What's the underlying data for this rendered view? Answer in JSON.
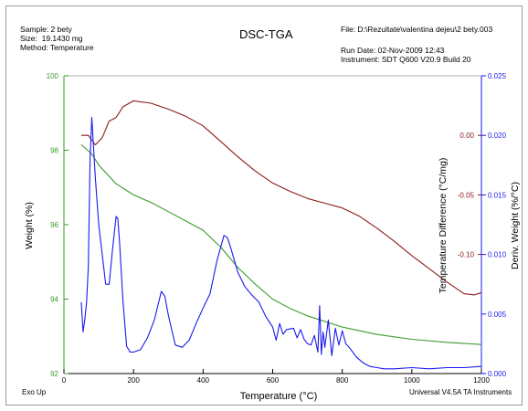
{
  "header": {
    "sample": "Sample: 2 bety",
    "size": "Size:  19.1430 mg",
    "method": "Method: Temperature",
    "file": "File: D:\\Rezultate\\valentina dejeu\\2 bety.003",
    "run_date": "Run Date: 02-Nov-2009 12:43",
    "instrument": "Instrument: SDT Q600 V20.9 Build 20"
  },
  "footer": {
    "exo": "Exo Up",
    "software": "Universal V4.5A TA Instruments"
  },
  "colors": {
    "weight": "#3a9a2a",
    "heat_flow": "#8b1a1a",
    "deriv": "#1a1aee",
    "axis": "#000000",
    "deriv_axis": "#1a1aee"
  },
  "chart_data": {
    "type": "line",
    "title": "DSC-TGA",
    "xlabel": "Temperature (°C)",
    "xlim": [
      0,
      1200
    ],
    "x_ticks": [
      0,
      200,
      400,
      600,
      800,
      1000,
      1200
    ],
    "grid": false,
    "axes": {
      "left": {
        "label": "Weight (%)",
        "ylim": [
          92,
          100
        ],
        "ticks": [
          92,
          94,
          96,
          98,
          100
        ],
        "labels": [
          "92",
          "94",
          "96",
          "98",
          "100"
        ]
      },
      "right_inner": {
        "label": "Temperature Difference (°C/mg)",
        "ylim": [
          -0.2,
          0.05
        ],
        "ticks": [
          -0.1,
          -0.05,
          0.0
        ],
        "labels": [
          "-0.10",
          "-0.05",
          "0.00"
        ]
      },
      "right_outer": {
        "label": "Deriv. Weight (%/°C)",
        "ylim": [
          0,
          0.025
        ],
        "ticks": [
          0,
          0.005,
          0.01,
          0.015,
          0.02,
          0.025
        ],
        "labels": [
          "0.000",
          "0.005",
          "0.010",
          "0.015",
          "0.020",
          "0.025"
        ]
      }
    },
    "series": [
      {
        "name": "Weight",
        "axis": "left",
        "color": "#3a9a2a",
        "x": [
          50,
          80,
          100,
          150,
          200,
          250,
          300,
          350,
          400,
          450,
          500,
          550,
          600,
          650,
          700,
          800,
          900,
          1000,
          1100,
          1200
        ],
        "y": [
          98.15,
          97.9,
          97.6,
          97.1,
          96.8,
          96.6,
          96.35,
          96.1,
          95.85,
          95.4,
          94.85,
          94.4,
          94.0,
          93.75,
          93.55,
          93.25,
          93.05,
          92.92,
          92.84,
          92.78
        ]
      },
      {
        "name": "Heat Flow",
        "axis": "right_inner",
        "color": "#8b1a1a",
        "x": [
          50,
          70,
          90,
          110,
          130,
          150,
          170,
          200,
          250,
          300,
          350,
          400,
          450,
          500,
          550,
          600,
          650,
          700,
          750,
          800,
          850,
          900,
          950,
          1000,
          1050,
          1100,
          1150,
          1180,
          1200
        ],
        "y": [
          0.0,
          0.0,
          -0.008,
          -0.002,
          0.012,
          0.015,
          0.024,
          0.029,
          0.027,
          0.022,
          0.016,
          0.008,
          -0.005,
          -0.018,
          -0.03,
          -0.04,
          -0.047,
          -0.053,
          -0.057,
          -0.061,
          -0.068,
          -0.078,
          -0.089,
          -0.101,
          -0.112,
          -0.123,
          -0.133,
          -0.134,
          -0.132
        ]
      },
      {
        "name": "Deriv. Weight",
        "axis": "right_outer",
        "color": "#1a1aee",
        "x": [
          50,
          55,
          60,
          65,
          70,
          75,
          80,
          85,
          90,
          95,
          100,
          110,
          120,
          130,
          140,
          150,
          155,
          160,
          170,
          180,
          190,
          200,
          220,
          240,
          260,
          280,
          290,
          300,
          320,
          340,
          360,
          380,
          400,
          420,
          440,
          460,
          470,
          480,
          500,
          520,
          540,
          560,
          580,
          600,
          610,
          620,
          630,
          640,
          660,
          670,
          680,
          690,
          700,
          710,
          720,
          730,
          735,
          740,
          745,
          750,
          760,
          770,
          780,
          790,
          800,
          810,
          820,
          840,
          860,
          880,
          900,
          920,
          950,
          1000,
          1050,
          1100,
          1150,
          1200
        ],
        "y": [
          0.006,
          0.0035,
          0.0045,
          0.006,
          0.009,
          0.018,
          0.0215,
          0.019,
          0.0165,
          0.0145,
          0.0125,
          0.01,
          0.0075,
          0.0075,
          0.0105,
          0.0132,
          0.013,
          0.011,
          0.006,
          0.0023,
          0.0018,
          0.0018,
          0.002,
          0.003,
          0.0045,
          0.0069,
          0.0065,
          0.0049,
          0.0024,
          0.0022,
          0.0028,
          0.0042,
          0.0055,
          0.0067,
          0.0095,
          0.0116,
          0.0114,
          0.0105,
          0.0085,
          0.0073,
          0.0066,
          0.006,
          0.0048,
          0.0039,
          0.0028,
          0.0042,
          0.0033,
          0.0037,
          0.0038,
          0.003,
          0.0037,
          0.0029,
          0.0025,
          0.0024,
          0.0032,
          0.0018,
          0.0057,
          0.0016,
          0.0035,
          0.0022,
          0.0045,
          0.0015,
          0.0038,
          0.0024,
          0.0036,
          0.0025,
          0.0022,
          0.0014,
          0.0009,
          0.0006,
          0.0005,
          0.0004,
          0.0004,
          0.0005,
          0.0004,
          0.0005,
          0.0005,
          0.0006
        ]
      }
    ]
  }
}
